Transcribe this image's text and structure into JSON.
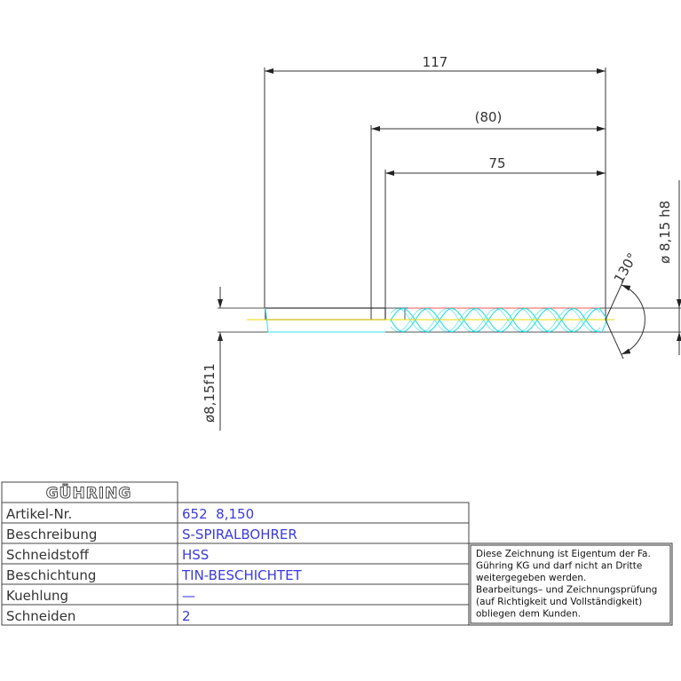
{
  "dimensions": {
    "overall_length": "117",
    "flute_length_ref": "(80)",
    "flute_length": "75",
    "diameter_right": "ø 8,15 h8",
    "diameter_left": "ø8,15f11",
    "point_angle": "130°"
  },
  "colors": {
    "outline": "#333333",
    "helix": "#33e0ee",
    "centerline": "#e8d800",
    "edge": "#ff5555",
    "value_text": "#3a3ae0"
  },
  "title_block": {
    "logo": "GÜHRING",
    "rows": [
      {
        "label": "Artikel-Nr.",
        "value": "652  8,150"
      },
      {
        "label": "Beschreibung",
        "value": "S-SPIRALBOHRER"
      },
      {
        "label": "Schneidstoff",
        "value": "HSS"
      },
      {
        "label": "Beschichtung",
        "value": "TIN-BESCHICHTET"
      },
      {
        "label": "Kuehlung",
        "value": "—"
      },
      {
        "label": "Schneiden",
        "value": "2"
      }
    ]
  },
  "note": {
    "lines": [
      "Diese Zeichnung ist Eigentum der Fa.",
      "Gühring KG und darf nicht an Dritte",
      "weitergegeben werden.",
      "Bearbeitungs– und Zeichnungsprüfung",
      "(auf Richtigkeit und Vollständigkeit)",
      "obliegen dem Kunden."
    ]
  }
}
